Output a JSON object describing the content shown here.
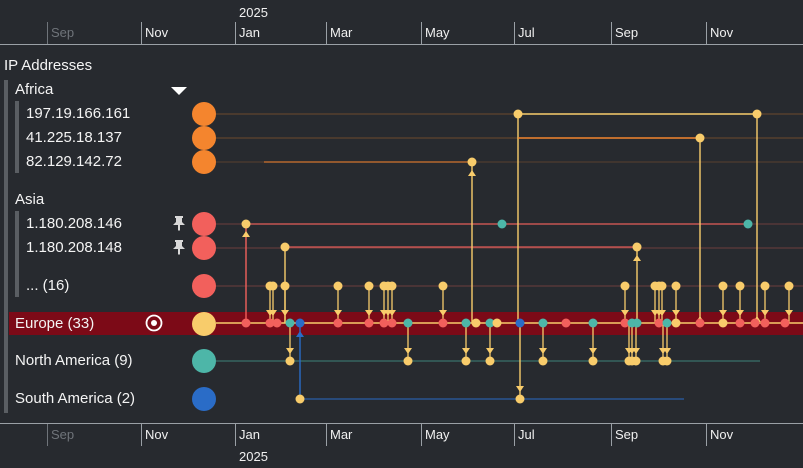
{
  "timeline": {
    "year_label": "2025",
    "months": [
      "Sep",
      "Nov",
      "Jan",
      "Mar",
      "May",
      "Jul",
      "Sep",
      "Nov"
    ],
    "faded_months": [
      true,
      false,
      false,
      false,
      false,
      false,
      false,
      false
    ]
  },
  "panel": {
    "title": "IP Addresses",
    "groups": [
      {
        "label": "Africa",
        "items": [
          "197.19.166.161",
          "41.225.18.137",
          "82.129.142.72"
        ]
      },
      {
        "label": "Asia",
        "items": [
          "1.180.208.146",
          "1.180.208.148",
          "... (16)"
        ]
      }
    ],
    "europe": "Europe (33)",
    "north_america": "North America (9)",
    "south_america": "South America (2)"
  },
  "colors": {
    "africa": "#f4852e",
    "asia": "#f2605c",
    "europe": "#f8cc6b",
    "north_america": "#4db6a8",
    "south_america": "#2a6cc7",
    "band": "#7c0a17",
    "background": "#272a2f"
  },
  "icons": {
    "collapse": "triangle-down-icon",
    "pin": "pin-icon",
    "focus": "target-icon"
  }
}
